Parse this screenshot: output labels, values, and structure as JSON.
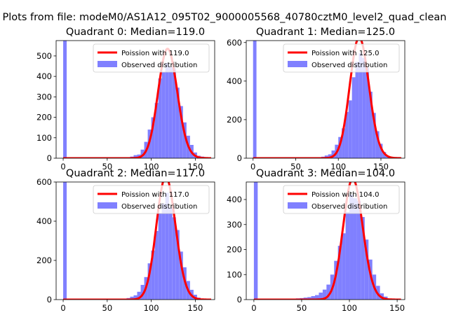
{
  "suptitle": "Plots from file: modeM0/AS1A12_095T02_9000005568_40780cztM0_level2_quad_clean",
  "legend": {
    "line_label_prefix": "Poission with",
    "bar_label": "Observed distribution"
  },
  "colors": {
    "poisson_line": "#ff0000",
    "histogram": "#8080ff"
  },
  "chart_data": [
    {
      "type": "bar",
      "title": "Quadrant 0: Median=119.0",
      "median_label": "119.0",
      "mean": 119,
      "xlim": [
        -8,
        172
      ],
      "ylim": [
        0,
        575
      ],
      "xticks": [
        0,
        50,
        100,
        150
      ],
      "yticks": [
        0,
        100,
        200,
        300,
        400,
        500
      ],
      "legend_position": "upper right",
      "hist": [
        [
          0,
          575
        ],
        [
          72,
          5
        ],
        [
          76,
          8
        ],
        [
          80,
          15
        ],
        [
          84,
          18
        ],
        [
          88,
          42
        ],
        [
          92,
          80
        ],
        [
          96,
          140
        ],
        [
          100,
          200
        ],
        [
          104,
          270
        ],
        [
          108,
          390
        ],
        [
          112,
          420
        ],
        [
          116,
          465
        ],
        [
          120,
          445
        ],
        [
          124,
          440
        ],
        [
          128,
          345
        ],
        [
          132,
          255
        ],
        [
          136,
          175
        ],
        [
          140,
          110
        ],
        [
          144,
          65
        ],
        [
          148,
          28
        ],
        [
          152,
          12
        ],
        [
          156,
          8
        ]
      ]
    },
    {
      "type": "bar",
      "title": "Quadrant 1: Median=125.0",
      "median_label": "125.0",
      "mean": 125,
      "xlim": [
        -8,
        178
      ],
      "ylim": [
        0,
        610
      ],
      "xticks": [
        0,
        50,
        100,
        150
      ],
      "yticks": [
        0,
        200,
        400,
        600
      ],
      "legend_position": "upper right",
      "hist": [
        [
          0,
          610
        ],
        [
          80,
          8
        ],
        [
          84,
          14
        ],
        [
          88,
          20
        ],
        [
          92,
          40
        ],
        [
          96,
          70
        ],
        [
          100,
          110
        ],
        [
          104,
          155
        ],
        [
          108,
          240
        ],
        [
          112,
          300
        ],
        [
          116,
          420
        ],
        [
          120,
          500
        ],
        [
          124,
          545
        ],
        [
          128,
          520
        ],
        [
          132,
          470
        ],
        [
          136,
          345
        ],
        [
          140,
          235
        ],
        [
          144,
          140
        ],
        [
          148,
          75
        ],
        [
          152,
          32
        ],
        [
          156,
          12
        ]
      ]
    },
    {
      "type": "bar",
      "title": "Quadrant 2: Median=117.0",
      "median_label": "117.0",
      "mean": 117,
      "xlim": [
        -8,
        172
      ],
      "ylim": [
        0,
        600
      ],
      "xticks": [
        0,
        50,
        100,
        150
      ],
      "yticks": [
        0,
        200,
        400,
        600
      ],
      "legend_position": "upper right",
      "hist": [
        [
          0,
          600
        ],
        [
          72,
          8
        ],
        [
          76,
          15
        ],
        [
          80,
          22
        ],
        [
          84,
          40
        ],
        [
          88,
          75
        ],
        [
          92,
          115
        ],
        [
          96,
          185
        ],
        [
          100,
          250
        ],
        [
          104,
          350
        ],
        [
          108,
          440
        ],
        [
          112,
          490
        ],
        [
          116,
          545
        ],
        [
          120,
          470
        ],
        [
          124,
          420
        ],
        [
          128,
          355
        ],
        [
          132,
          245
        ],
        [
          136,
          165
        ],
        [
          140,
          95
        ],
        [
          144,
          50
        ],
        [
          148,
          25
        ],
        [
          152,
          10
        ]
      ]
    },
    {
      "type": "bar",
      "title": "Quadrant 3: Median=104.0",
      "median_label": "104.0",
      "mean": 104,
      "xlim": [
        -8,
        158
      ],
      "ylim": [
        0,
        470
      ],
      "xticks": [
        0,
        50,
        100,
        150
      ],
      "yticks": [
        0,
        100,
        200,
        300,
        400
      ],
      "legend_position": "upper right",
      "hist": [
        [
          0,
          470
        ],
        [
          32,
          4
        ],
        [
          40,
          4
        ],
        [
          44,
          5
        ],
        [
          48,
          6
        ],
        [
          52,
          8
        ],
        [
          56,
          10
        ],
        [
          60,
          14
        ],
        [
          64,
          18
        ],
        [
          68,
          28
        ],
        [
          72,
          40
        ],
        [
          76,
          60
        ],
        [
          80,
          100
        ],
        [
          84,
          155
        ],
        [
          88,
          215
        ],
        [
          92,
          265
        ],
        [
          96,
          350
        ],
        [
          100,
          420
        ],
        [
          104,
          405
        ],
        [
          108,
          395
        ],
        [
          112,
          330
        ],
        [
          116,
          240
        ],
        [
          120,
          160
        ],
        [
          124,
          100
        ],
        [
          128,
          55
        ],
        [
          132,
          25
        ],
        [
          136,
          12
        ]
      ]
    }
  ]
}
